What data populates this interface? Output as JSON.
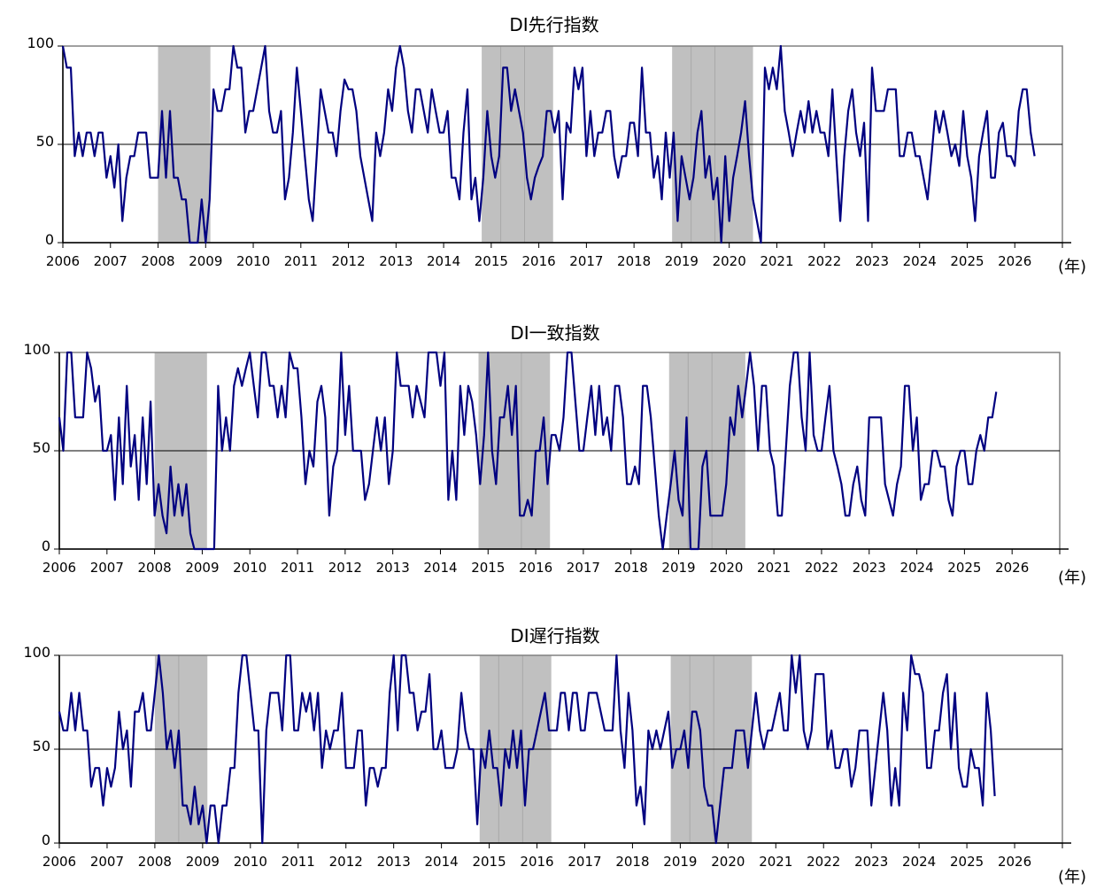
{
  "chart_data": [
    {
      "type": "line",
      "title": "DI先行指数",
      "x_unit_label": "(年)",
      "x_tick_labels": [
        "2006",
        "2007",
        "2008",
        "2009",
        "2010",
        "2011",
        "2012",
        "2013",
        "2014",
        "2015",
        "2016",
        "2017",
        "2018",
        "2019",
        "2020",
        "2021",
        "2022",
        "2023",
        "2024",
        "2025",
        "2026"
      ],
      "y_tick_labels": [
        "0",
        "50",
        "100"
      ],
      "ylim": [
        0,
        100
      ],
      "xlim": [
        2006.0,
        2027.0
      ],
      "reference_line": 50,
      "grid": false,
      "series_color": "#000080",
      "shading_color": "#c0c0c0",
      "recession_periods": [
        [
          2008.0,
          2009.1
        ],
        [
          2014.8,
          2016.3
        ],
        [
          2018.8,
          2020.5
        ]
      ],
      "period_dividers": [
        2015.2,
        2015.7,
        2019.2,
        2019.7
      ],
      "start": 2006.0,
      "step": 0.0833333,
      "values": [
        100,
        89,
        89,
        44,
        56,
        44,
        56,
        56,
        44,
        56,
        56,
        33,
        44,
        28,
        50,
        11,
        33,
        44,
        44,
        56,
        56,
        56,
        33,
        33,
        33,
        67,
        33,
        67,
        33,
        33,
        22,
        22,
        0,
        0,
        0,
        22,
        0,
        22,
        78,
        67,
        67,
        78,
        78,
        100,
        89,
        89,
        56,
        67,
        67,
        78,
        89,
        100,
        67,
        56,
        56,
        67,
        22,
        33,
        56,
        89,
        67,
        44,
        22,
        11,
        44,
        78,
        67,
        56,
        56,
        44,
        67,
        83,
        78,
        78,
        67,
        44,
        33,
        22,
        11,
        56,
        44,
        56,
        78,
        67,
        89,
        100,
        89,
        67,
        56,
        78,
        78,
        67,
        56,
        78,
        67,
        56,
        56,
        67,
        33,
        33,
        22,
        56,
        78,
        22,
        33,
        11,
        33,
        67,
        44,
        33,
        44,
        89,
        89,
        67,
        78,
        67,
        56,
        33,
        22,
        33,
        39,
        44,
        67,
        67,
        56,
        67,
        22,
        61,
        56,
        89,
        78,
        89,
        44,
        67,
        44,
        56,
        56,
        67,
        67,
        44,
        33,
        44,
        44,
        61,
        61,
        44,
        89,
        56,
        56,
        33,
        44,
        22,
        56,
        33,
        56,
        11,
        44,
        33,
        22,
        33,
        56,
        67,
        33,
        44,
        22,
        33,
        0,
        44,
        11,
        33,
        44,
        56,
        72,
        44,
        22,
        11,
        0,
        89,
        78,
        89,
        78,
        100,
        67,
        56,
        44,
        56,
        67,
        56,
        72,
        56,
        67,
        56,
        56,
        44,
        78,
        44,
        11,
        44,
        67,
        78,
        56,
        44,
        61,
        11,
        89,
        67,
        67,
        67,
        78,
        78,
        78,
        44,
        44,
        56,
        56,
        44,
        44,
        33,
        22,
        44,
        67,
        56,
        67,
        56,
        44,
        50,
        39,
        67,
        44,
        33,
        11,
        44,
        56,
        67,
        33,
        33,
        56,
        61,
        44,
        44,
        39,
        67,
        78,
        78,
        56,
        44
      ]
    },
    {
      "type": "line",
      "title": "DI一致指数",
      "x_unit_label": "(年)",
      "x_tick_labels": [
        "2006",
        "2007",
        "2008",
        "2009",
        "2010",
        "2011",
        "2012",
        "2013",
        "2014",
        "2015",
        "2016",
        "2017",
        "2018",
        "2019",
        "2020",
        "2021",
        "2022",
        "2023",
        "2024",
        "2025",
        "2026"
      ],
      "y_tick_labels": [
        "0",
        "50",
        "100"
      ],
      "ylim": [
        0,
        100
      ],
      "xlim": [
        2006.0,
        2027.0
      ],
      "reference_line": 50,
      "grid": false,
      "series_color": "#000080",
      "shading_color": "#c0c0c0",
      "recession_periods": [
        [
          2008.0,
          2009.1
        ],
        [
          2014.8,
          2016.3
        ],
        [
          2018.8,
          2020.4
        ]
      ],
      "period_dividers": [
        2015.7,
        2019.2,
        2019.7
      ],
      "start": 2006.0,
      "step": 0.0833333,
      "values": [
        67,
        50,
        100,
        100,
        67,
        67,
        67,
        100,
        92,
        75,
        83,
        50,
        50,
        58,
        25,
        67,
        33,
        83,
        42,
        58,
        25,
        67,
        33,
        75,
        17,
        33,
        17,
        8,
        42,
        17,
        33,
        17,
        33,
        8,
        0,
        0,
        0,
        0,
        0,
        0,
        83,
        50,
        67,
        50,
        83,
        92,
        83,
        92,
        100,
        83,
        67,
        100,
        100,
        83,
        83,
        67,
        83,
        67,
        100,
        92,
        92,
        67,
        33,
        50,
        42,
        75,
        83,
        67,
        17,
        42,
        50,
        100,
        58,
        83,
        50,
        50,
        50,
        25,
        33,
        50,
        67,
        50,
        67,
        33,
        50,
        100,
        83,
        83,
        83,
        67,
        83,
        75,
        67,
        100,
        100,
        100,
        83,
        100,
        25,
        50,
        25,
        83,
        58,
        83,
        75,
        58,
        33,
        58,
        100,
        50,
        33,
        67,
        67,
        83,
        58,
        83,
        17,
        17,
        25,
        17,
        50,
        50,
        67,
        33,
        58,
        58,
        50,
        67,
        100,
        100,
        75,
        50,
        50,
        67,
        83,
        58,
        83,
        58,
        67,
        50,
        83,
        83,
        67,
        33,
        33,
        42,
        33,
        83,
        83,
        67,
        42,
        17,
        0,
        17,
        33,
        50,
        25,
        17,
        67,
        0,
        0,
        0,
        42,
        50,
        17,
        17,
        17,
        17,
        33,
        67,
        58,
        83,
        67,
        83,
        100,
        83,
        50,
        83,
        83,
        50,
        42,
        17,
        17,
        50,
        83,
        100,
        100,
        67,
        50,
        100,
        58,
        50,
        50,
        67,
        83,
        50,
        42,
        33,
        17,
        17,
        33,
        42,
        25,
        17,
        67,
        67,
        67,
        67,
        33,
        25,
        17,
        33,
        42,
        83,
        83,
        50,
        67,
        25,
        33,
        33,
        50,
        50,
        42,
        42,
        25,
        17,
        42,
        50,
        50,
        33,
        33,
        50,
        58,
        50,
        67,
        67,
        80
      ]
    },
    {
      "type": "line",
      "title": "DI遅行指数",
      "x_unit_label": "(年)",
      "x_tick_labels": [
        "2006",
        "2007",
        "2008",
        "2009",
        "2010",
        "2011",
        "2012",
        "2013",
        "2014",
        "2015",
        "2016",
        "2017",
        "2018",
        "2019",
        "2020",
        "2021",
        "2022",
        "2023",
        "2024",
        "2025",
        "2026"
      ],
      "y_tick_labels": [
        "0",
        "50",
        "100"
      ],
      "ylim": [
        0,
        100
      ],
      "xlim": [
        2006.0,
        2027.0
      ],
      "reference_line": 50,
      "grid": false,
      "series_color": "#000080",
      "shading_color": "#c0c0c0",
      "recession_periods": [
        [
          2008.0,
          2009.1
        ],
        [
          2014.8,
          2016.3
        ],
        [
          2018.8,
          2020.5
        ]
      ],
      "period_dividers": [
        2008.5,
        2015.2,
        2015.7,
        2019.2,
        2019.7
      ],
      "start": 2006.0,
      "step": 0.0833333,
      "values": [
        70,
        60,
        60,
        80,
        60,
        80,
        60,
        60,
        30,
        40,
        40,
        20,
        40,
        30,
        40,
        70,
        50,
        60,
        30,
        70,
        70,
        80,
        60,
        60,
        80,
        100,
        80,
        50,
        60,
        40,
        60,
        20,
        20,
        10,
        30,
        10,
        20,
        0,
        20,
        20,
        0,
        20,
        20,
        40,
        40,
        80,
        100,
        100,
        80,
        60,
        60,
        0,
        60,
        80,
        80,
        80,
        60,
        100,
        100,
        60,
        60,
        80,
        70,
        80,
        60,
        80,
        40,
        60,
        50,
        60,
        60,
        80,
        40,
        40,
        40,
        60,
        60,
        20,
        40,
        40,
        30,
        40,
        40,
        80,
        100,
        60,
        100,
        100,
        80,
        80,
        60,
        70,
        70,
        90,
        50,
        50,
        60,
        40,
        40,
        40,
        50,
        80,
        60,
        50,
        50,
        10,
        50,
        40,
        60,
        40,
        40,
        20,
        50,
        40,
        60,
        40,
        60,
        20,
        50,
        50,
        60,
        70,
        80,
        60,
        60,
        60,
        80,
        80,
        60,
        80,
        80,
        60,
        60,
        80,
        80,
        80,
        70,
        60,
        60,
        60,
        100,
        60,
        40,
        80,
        60,
        20,
        30,
        10,
        60,
        50,
        60,
        50,
        60,
        70,
        40,
        50,
        50,
        60,
        40,
        70,
        70,
        60,
        30,
        20,
        20,
        0,
        20,
        40,
        40,
        40,
        60,
        60,
        60,
        40,
        60,
        80,
        60,
        50,
        60,
        60,
        70,
        80,
        60,
        60,
        100,
        80,
        100,
        60,
        50,
        60,
        90,
        90,
        90,
        50,
        60,
        40,
        40,
        50,
        50,
        30,
        40,
        60,
        60,
        60,
        20,
        40,
        60,
        80,
        60,
        20,
        40,
        20,
        80,
        60,
        100,
        90,
        90,
        80,
        40,
        40,
        60,
        60,
        80,
        90,
        50,
        80,
        40,
        30,
        30,
        50,
        40,
        40,
        20,
        80,
        60,
        25
      ]
    }
  ]
}
